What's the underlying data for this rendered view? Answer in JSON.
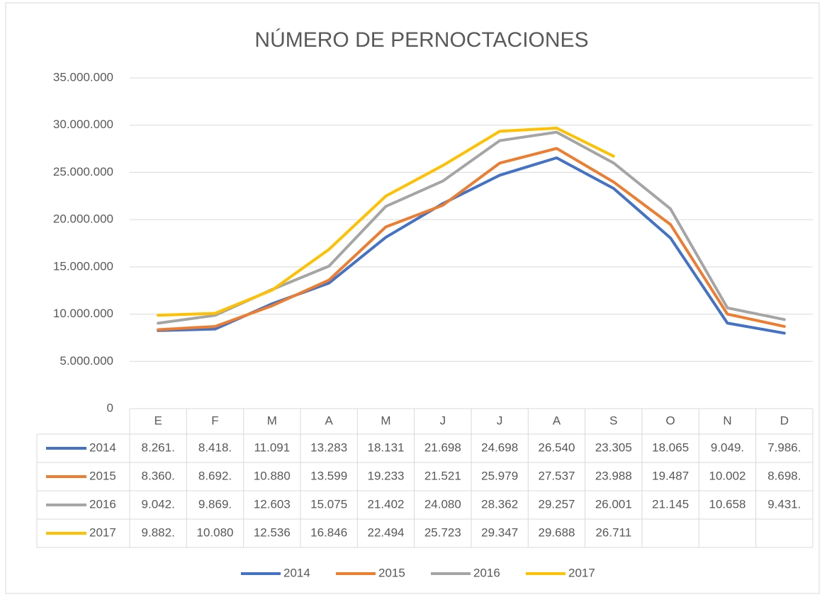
{
  "chart_data": {
    "type": "line",
    "title": "NÚMERO DE PERNOCTACIONES",
    "categories": [
      "E",
      "F",
      "M",
      "A",
      "M",
      "J",
      "J",
      "A",
      "S",
      "O",
      "N",
      "D"
    ],
    "ylim": [
      0,
      35000000
    ],
    "yticks": [
      0,
      {
        "value": 5000000,
        "label": "5.000.000"
      },
      {
        "value": 10000000,
        "label": "10.000.000"
      },
      {
        "value": 15000000,
        "label": "15.000.000"
      },
      {
        "value": 20000000,
        "label": "20.000.000"
      },
      {
        "value": 25000000,
        "label": "25.000.000"
      },
      {
        "value": 30000000,
        "label": "30.000.000"
      },
      {
        "value": 35000000,
        "label": "35.000.000"
      }
    ],
    "grid": true,
    "series": [
      {
        "name": "2014",
        "color": "#4472c4",
        "values": [
          8261000,
          8418000,
          11091000,
          13283000,
          18131000,
          21698000,
          24698000,
          26540000,
          23305000,
          18065000,
          9049000,
          7986000
        ],
        "value_labels": [
          "8.261.",
          "8.418.",
          "11.091",
          "13.283",
          "18.131",
          "21.698",
          "24.698",
          "26.540",
          "23.305",
          "18.065",
          "9.049.",
          "7.986."
        ]
      },
      {
        "name": "2015",
        "color": "#ed7d31",
        "values": [
          8360000,
          8692000,
          10880000,
          13599000,
          19233000,
          21521000,
          25979000,
          27537000,
          23988000,
          19487000,
          10002000,
          8698000
        ],
        "value_labels": [
          "8.360.",
          "8.692.",
          "10.880",
          "13.599",
          "19.233",
          "21.521",
          "25.979",
          "27.537",
          "23.988",
          "19.487",
          "10.002",
          "8.698."
        ]
      },
      {
        "name": "2016",
        "color": "#a5a5a5",
        "values": [
          9042000,
          9869000,
          12603000,
          15075000,
          21402000,
          24080000,
          28362000,
          29257000,
          26001000,
          21145000,
          10658000,
          9431000
        ],
        "value_labels": [
          "9.042.",
          "9.869.",
          "12.603",
          "15.075",
          "21.402",
          "24.080",
          "28.362",
          "29.257",
          "26.001",
          "21.145",
          "10.658",
          "9.431."
        ]
      },
      {
        "name": "2017",
        "color": "#ffc000",
        "values": [
          9882000,
          10080000,
          12536000,
          16846000,
          22494000,
          25723000,
          29347000,
          29688000,
          26711000,
          null,
          null,
          null
        ],
        "value_labels": [
          "9.882.",
          "10.080",
          "12.536",
          "16.846",
          "22.494",
          "25.723",
          "29.347",
          "29.688",
          "26.711",
          null,
          null,
          null
        ]
      }
    ]
  }
}
